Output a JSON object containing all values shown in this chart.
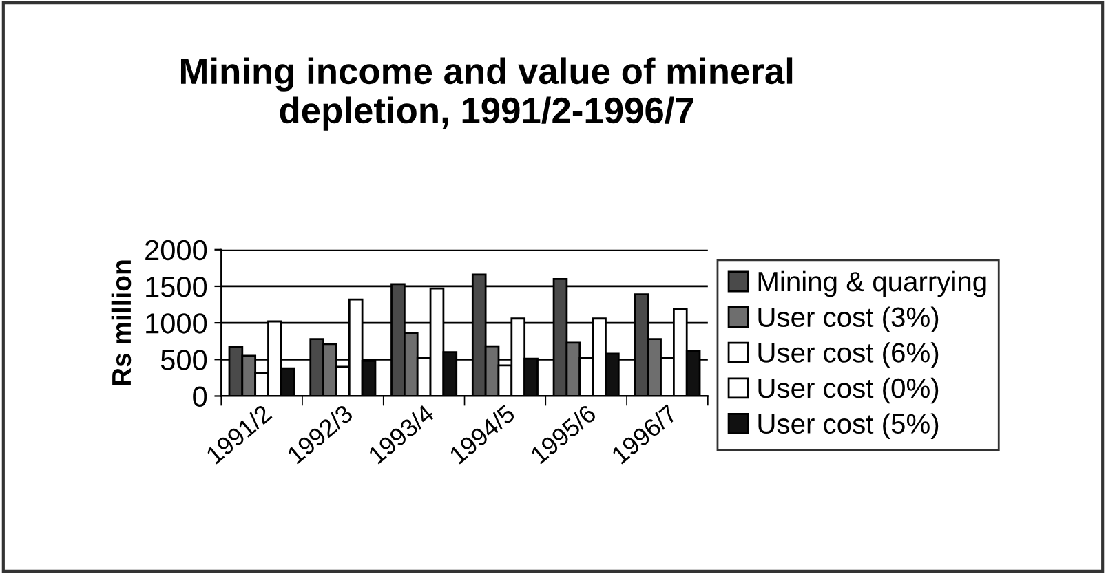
{
  "chart_data": {
    "type": "bar",
    "title": "Mining income and value of mineral\ndepletion, 1991/2-1996/7",
    "ylabel": "Rs million",
    "categories": [
      "1991/2",
      "1992/3",
      "1993/4",
      "1994/5",
      "1995/6",
      "1996/7"
    ],
    "series": [
      {
        "name": "Mining & quarrying",
        "color": "#4a4a4a",
        "values": [
          670,
          780,
          1530,
          1660,
          1600,
          1390
        ]
      },
      {
        "name": "User cost (3%)",
        "color": "#6e6e6e",
        "values": [
          550,
          710,
          860,
          680,
          730,
          780
        ]
      },
      {
        "name": "User cost (6%)",
        "color": "#ffffff",
        "values": [
          310,
          400,
          520,
          420,
          520,
          520
        ]
      },
      {
        "name": "User cost (0%)",
        "color": "#ffffff",
        "values": [
          1020,
          1320,
          1470,
          1060,
          1060,
          1190
        ]
      },
      {
        "name": "User cost (5%)",
        "color": "#111111",
        "values": [
          380,
          480,
          600,
          510,
          580,
          620
        ]
      }
    ],
    "ylim": [
      0,
      2000
    ],
    "yticks": [
      0,
      500,
      1000,
      1500,
      2000
    ],
    "grid": "y",
    "legend": "right"
  }
}
